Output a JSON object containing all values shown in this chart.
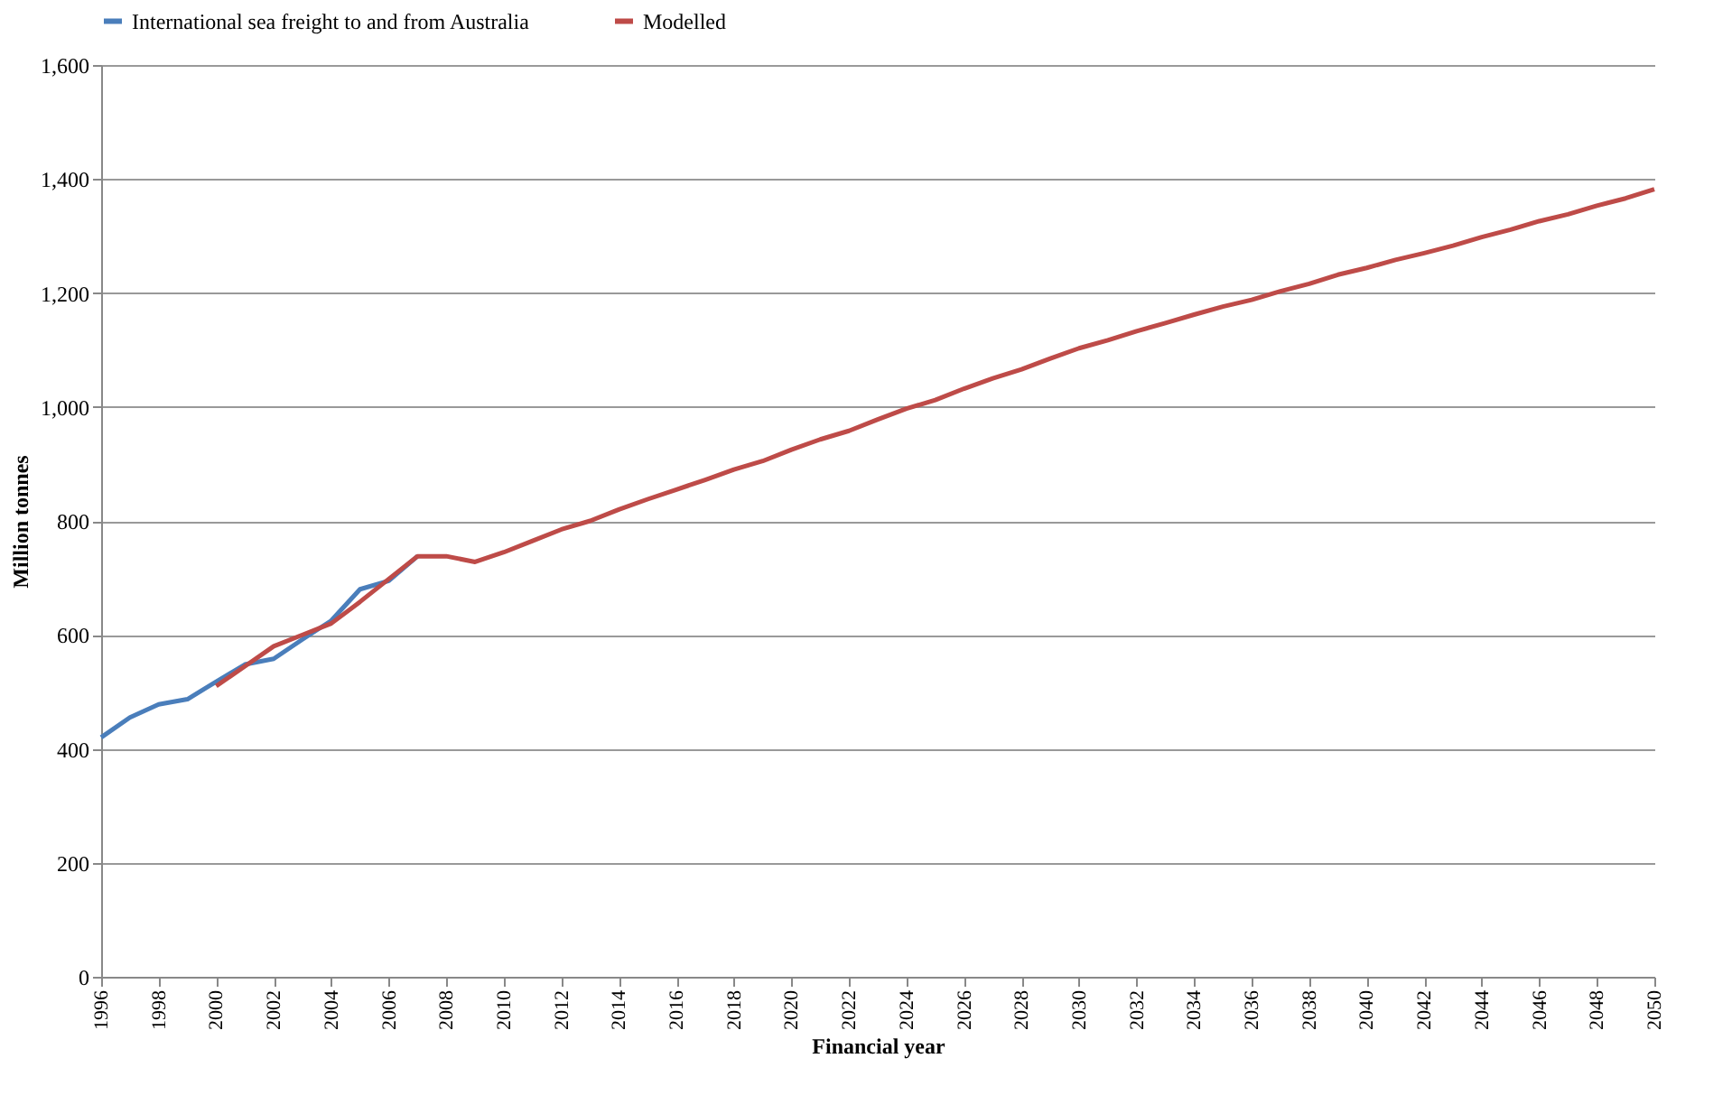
{
  "chart_data": {
    "type": "line",
    "xlabel": "Financial year",
    "ylabel": "Million tonnes",
    "xlim": [
      1996,
      2050
    ],
    "xticks": [
      1996,
      1998,
      2000,
      2002,
      2004,
      2006,
      2008,
      2010,
      2012,
      2014,
      2016,
      2018,
      2020,
      2022,
      2024,
      2026,
      2028,
      2030,
      2032,
      2034,
      2036,
      2038,
      2040,
      2042,
      2044,
      2046,
      2048,
      2050
    ],
    "ylim": [
      0,
      1600
    ],
    "yticks": [
      {
        "value": 0,
        "label": "0"
      },
      {
        "value": 200,
        "label": "200"
      },
      {
        "value": 400,
        "label": "400"
      },
      {
        "value": 600,
        "label": "600"
      },
      {
        "value": 800,
        "label": "800"
      },
      {
        "value": 1000,
        "label": "1,000"
      },
      {
        "value": 1200,
        "label": "1,200"
      },
      {
        "value": 1400,
        "label": "1,400"
      },
      {
        "value": 1600,
        "label": "1,600"
      }
    ],
    "grid": "y",
    "legend": "top",
    "marker": "none",
    "line_style": "solid",
    "series": [
      {
        "name": "International sea freight to and from Australia",
        "color": "#4a7ebb",
        "x": [
          1996,
          1997,
          1998,
          1999,
          2000,
          2001,
          2002,
          2003,
          2004,
          2005,
          2006,
          2007
        ],
        "values": [
          420,
          455,
          478,
          487,
          518,
          548,
          558,
          592,
          625,
          680,
          695,
          738
        ]
      },
      {
        "name": "Modelled",
        "color": "#be4b48",
        "x": [
          2000,
          2001,
          2002,
          2003,
          2004,
          2005,
          2006,
          2007,
          2008,
          2009,
          2010,
          2011,
          2012,
          2013,
          2014,
          2015,
          2016,
          2017,
          2018,
          2019,
          2020,
          2021,
          2022,
          2023,
          2024,
          2025,
          2026,
          2027,
          2028,
          2029,
          2030,
          2031,
          2032,
          2033,
          2034,
          2035,
          2036,
          2037,
          2038,
          2039,
          2040,
          2041,
          2042,
          2043,
          2044,
          2045,
          2046,
          2047,
          2048,
          2049,
          2050
        ],
        "values": [
          510,
          545,
          580,
          600,
          620,
          658,
          698,
          738,
          738,
          728,
          745,
          765,
          785,
          800,
          820,
          838,
          855,
          872,
          890,
          905,
          925,
          943,
          958,
          978,
          997,
          1012,
          1032,
          1050,
          1066,
          1085,
          1103,
          1117,
          1133,
          1147,
          1162,
          1176,
          1188,
          1203,
          1216,
          1232,
          1244,
          1258,
          1270,
          1283,
          1298,
          1311,
          1326,
          1338,
          1353,
          1366,
          1382
        ]
      }
    ]
  }
}
